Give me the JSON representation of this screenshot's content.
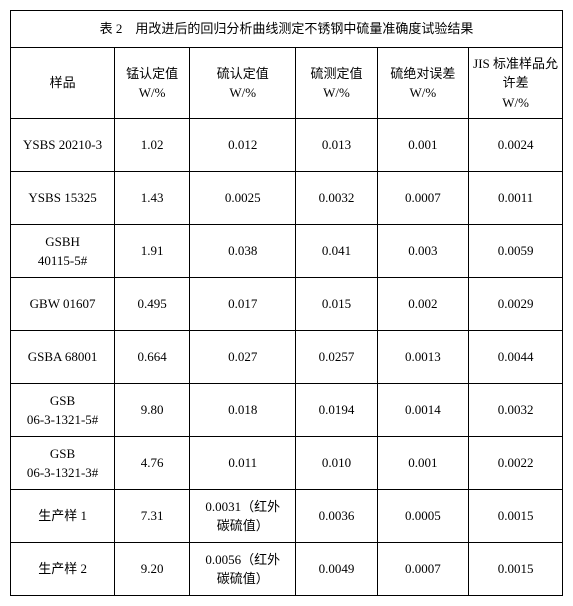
{
  "title": "表 2　用改进后的回归分析曲线测定不锈钢中硫量准确度试验结果",
  "columns": [
    {
      "key": "sample",
      "label": "样品"
    },
    {
      "key": "mn",
      "label": "锰认定值\nW/%"
    },
    {
      "key": "s_cert",
      "label": "硫认定值\nW/%"
    },
    {
      "key": "s_meas",
      "label": "硫测定值\nW/%"
    },
    {
      "key": "s_abs",
      "label": "硫绝对误差\nW/%"
    },
    {
      "key": "jis",
      "label": "JIS 标准样品允许差\nW/%"
    }
  ],
  "rows": [
    {
      "sample": "YSBS 20210-3",
      "mn": "1.02",
      "s_cert": "0.012",
      "s_meas": "0.013",
      "s_abs": "0.001",
      "jis": "0.0024"
    },
    {
      "sample": "YSBS 15325",
      "mn": "1.43",
      "s_cert": "0.0025",
      "s_meas": "0.0032",
      "s_abs": "0.0007",
      "jis": "0.0011"
    },
    {
      "sample": "GSBH\n40115-5#",
      "mn": "1.91",
      "s_cert": "0.038",
      "s_meas": "0.041",
      "s_abs": "0.003",
      "jis": "0.0059"
    },
    {
      "sample": "GBW 01607",
      "mn": "0.495",
      "s_cert": "0.017",
      "s_meas": "0.015",
      "s_abs": "0.002",
      "jis": "0.0029"
    },
    {
      "sample": "GSBA 68001",
      "mn": "0.664",
      "s_cert": "0.027",
      "s_meas": "0.0257",
      "s_abs": "0.0013",
      "jis": "0.0044"
    },
    {
      "sample": "GSB\n06-3-1321-5#",
      "mn": "9.80",
      "s_cert": "0.018",
      "s_meas": "0.0194",
      "s_abs": "0.0014",
      "jis": "0.0032"
    },
    {
      "sample": "GSB\n06-3-1321-3#",
      "mn": "4.76",
      "s_cert": "0.011",
      "s_meas": "0.010",
      "s_abs": "0.001",
      "jis": "0.0022"
    },
    {
      "sample": "生产样 1",
      "mn": "7.31",
      "s_cert": "0.0031（红外\n碳硫值）",
      "s_meas": "0.0036",
      "s_abs": "0.0005",
      "jis": "0.0015"
    },
    {
      "sample": "生产样 2",
      "mn": "9.20",
      "s_cert": "0.0056（红外\n碳硫值）",
      "s_meas": "0.0049",
      "s_abs": "0.0007",
      "jis": "0.0015"
    }
  ]
}
